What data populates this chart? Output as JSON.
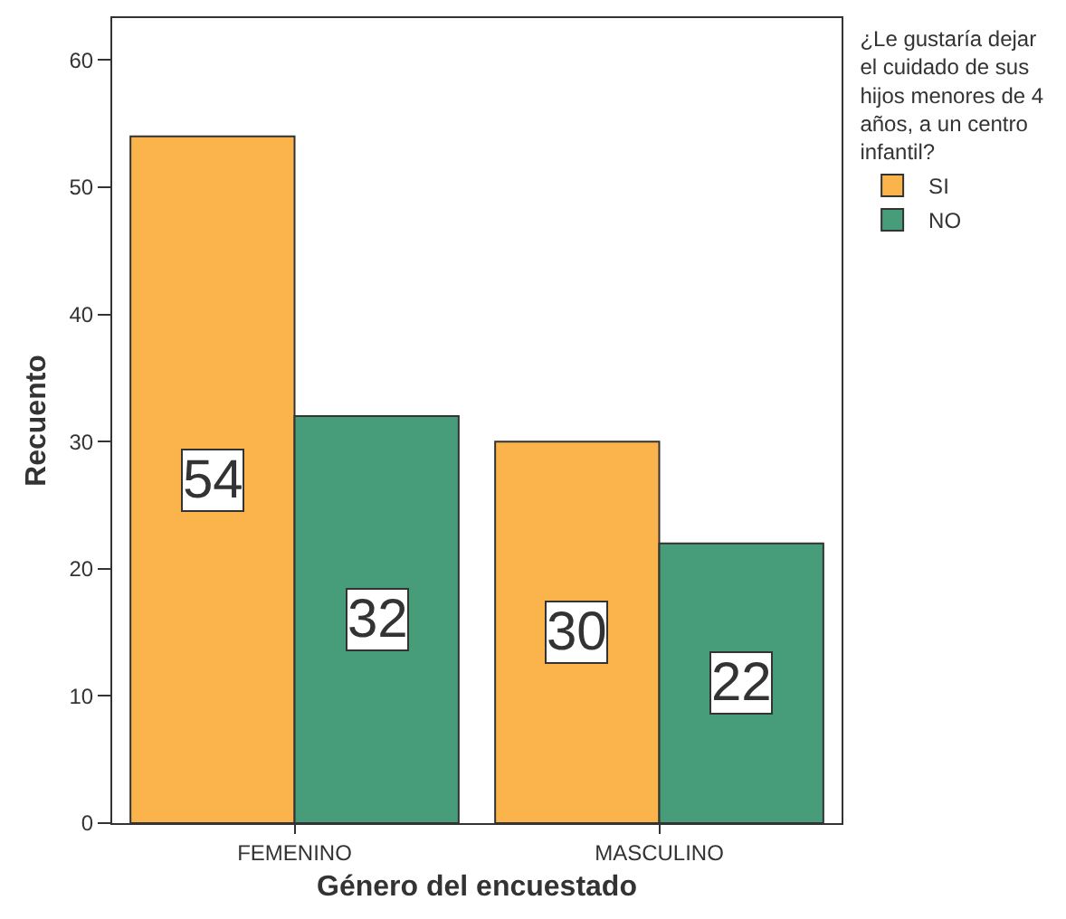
{
  "chart_data": {
    "type": "bar",
    "xlabel": "Género del encuestado",
    "ylabel": "Recuento",
    "legend_title": "¿Le gustaría dejar el cuidado de sus hijos menores de 4 años, a un centro infantil?",
    "categories": [
      "FEMENINO",
      "MASCULINO"
    ],
    "series": [
      {
        "name": "SI",
        "color": "#fbb34b",
        "values": [
          54,
          30
        ]
      },
      {
        "name": "NO",
        "color": "#479c7a",
        "values": [
          32,
          22
        ]
      }
    ],
    "ylim": [
      0,
      63.3
    ],
    "yticks": [
      0,
      10,
      20,
      30,
      40,
      50,
      60
    ],
    "grid": false,
    "legend": "top right",
    "data_labels": true
  }
}
